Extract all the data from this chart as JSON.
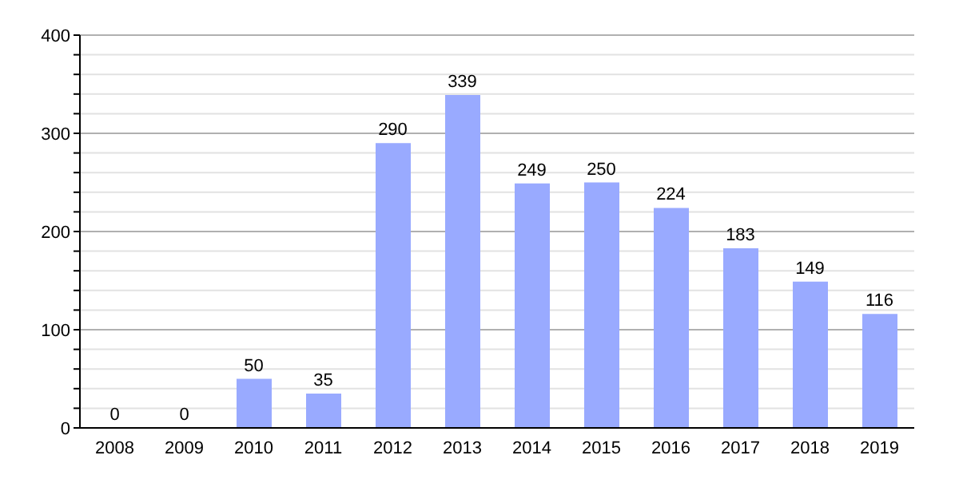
{
  "chart_data": {
    "type": "bar",
    "categories": [
      "2008",
      "2009",
      "2010",
      "2011",
      "2012",
      "2013",
      "2014",
      "2015",
      "2016",
      "2017",
      "2018",
      "2019"
    ],
    "values": [
      0,
      0,
      50,
      35,
      290,
      339,
      249,
      250,
      224,
      183,
      149,
      116
    ],
    "color": "#99aaff",
    "ylim": [
      0,
      400
    ],
    "yticks": [
      0,
      {
        "value": 20,
        "label": null
      },
      {
        "value": 40,
        "label": null
      },
      {
        "value": 60,
        "label": null
      },
      {
        "value": 80,
        "label": null
      },
      100,
      {
        "value": 120,
        "label": null
      },
      {
        "value": 140,
        "label": null
      },
      {
        "value": 160,
        "label": null
      },
      {
        "value": 180,
        "label": null
      },
      200,
      {
        "value": 220,
        "label": null
      },
      {
        "value": 240,
        "label": null
      },
      {
        "value": 260,
        "label": null
      },
      {
        "value": 280,
        "label": null
      },
      300,
      {
        "value": 320,
        "label": null
      },
      {
        "value": 340,
        "label": null
      },
      {
        "value": 360,
        "label": null
      },
      {
        "value": 380,
        "label": null
      },
      400
    ],
    "grid": "y",
    "data_labels": true
  }
}
